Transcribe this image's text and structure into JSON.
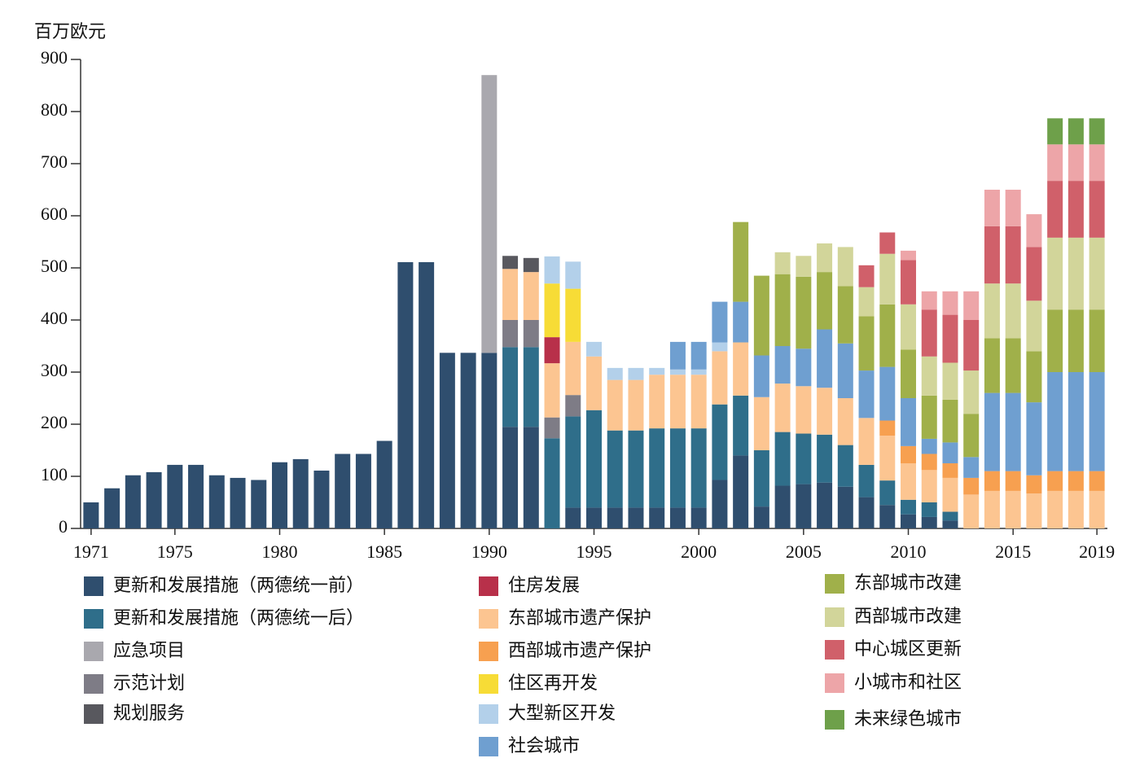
{
  "chart_data": {
    "type": "stacked_bar",
    "y_label": "百万欧元",
    "categories": [
      1971,
      null,
      null,
      null,
      1975,
      null,
      null,
      null,
      null,
      1980,
      null,
      null,
      null,
      null,
      1985,
      null,
      null,
      null,
      null,
      1990,
      null,
      null,
      null,
      null,
      1995,
      null,
      null,
      null,
      null,
      2000,
      null,
      null,
      null,
      null,
      2005,
      null,
      null,
      null,
      null,
      2010,
      null,
      null,
      null,
      null,
      2015,
      null,
      null,
      null,
      2019
    ],
    "ylim": [
      0,
      900
    ],
    "yticks": [
      0,
      100,
      200,
      300,
      400,
      500,
      600,
      700,
      800,
      900
    ],
    "series": [
      {
        "name": "更新和发展措施（两德统一前）",
        "color": "#2f4e6e",
        "values": [
          50,
          77,
          102,
          108,
          122,
          122,
          102,
          97,
          93,
          127,
          133,
          111,
          143,
          143,
          168,
          511,
          511,
          337,
          337,
          337,
          195,
          195,
          null,
          40,
          40,
          40,
          40,
          40,
          40,
          40,
          93,
          140,
          42,
          82,
          85,
          88,
          80,
          60,
          45,
          27,
          22,
          15,
          null,
          null,
          null,
          null,
          null,
          null,
          null
        ]
      },
      {
        "name": "更新和发展措施（两德统一后）",
        "color": "#2f6e8a",
        "values": [
          null,
          null,
          null,
          null,
          null,
          null,
          null,
          null,
          null,
          null,
          null,
          null,
          null,
          null,
          null,
          null,
          null,
          null,
          null,
          null,
          153,
          153,
          173,
          175,
          187,
          148,
          148,
          152,
          152,
          152,
          145,
          115,
          108,
          103,
          97,
          92,
          80,
          62,
          47,
          28,
          28,
          17,
          null,
          null,
          null,
          null,
          null,
          null,
          null
        ]
      },
      {
        "name": "应急项目",
        "color": "#a9a8ae",
        "values": [
          null,
          null,
          null,
          null,
          null,
          null,
          null,
          null,
          null,
          null,
          null,
          null,
          null,
          null,
          null,
          null,
          null,
          null,
          null,
          533,
          null,
          null,
          null,
          null,
          null,
          null,
          null,
          null,
          null,
          null,
          null,
          null,
          null,
          null,
          null,
          null,
          null,
          null,
          null,
          null,
          null,
          null,
          null,
          null,
          null,
          null,
          null,
          null,
          null
        ]
      },
      {
        "name": "示范计划",
        "color": "#7e7c86",
        "values": [
          null,
          null,
          null,
          null,
          null,
          null,
          null,
          null,
          null,
          null,
          null,
          null,
          null,
          null,
          null,
          null,
          null,
          null,
          null,
          null,
          52,
          52,
          40,
          41,
          null,
          null,
          null,
          null,
          null,
          null,
          null,
          null,
          null,
          null,
          null,
          null,
          null,
          null,
          null,
          null,
          null,
          null,
          null,
          null,
          null,
          null,
          null,
          null,
          null
        ]
      },
      {
        "name": "规划服务",
        "color": "#58585e",
        "values": [
          null,
          null,
          null,
          null,
          null,
          null,
          null,
          null,
          null,
          null,
          null,
          null,
          null,
          null,
          null,
          null,
          null,
          null,
          null,
          null,
          25,
          27,
          null,
          null,
          null,
          null,
          null,
          null,
          null,
          null,
          null,
          null,
          null,
          null,
          null,
          null,
          null,
          null,
          null,
          null,
          null,
          null,
          null,
          null,
          null,
          null,
          null,
          null,
          null
        ]
      },
      {
        "name": "住房发展",
        "color": "#b8304a",
        "values": [
          null,
          null,
          null,
          null,
          null,
          null,
          null,
          null,
          null,
          null,
          null,
          null,
          null,
          null,
          null,
          null,
          null,
          null,
          null,
          null,
          null,
          null,
          50,
          null,
          null,
          null,
          null,
          null,
          null,
          null,
          null,
          null,
          null,
          null,
          null,
          null,
          null,
          null,
          null,
          null,
          null,
          null,
          null,
          null,
          null,
          null,
          null,
          null,
          null
        ]
      },
      {
        "name": "东部城市遗产保护",
        "color": "#fcc591",
        "values": [
          null,
          null,
          null,
          null,
          null,
          null,
          null,
          null,
          null,
          null,
          null,
          null,
          null,
          null,
          null,
          null,
          null,
          null,
          null,
          null,
          98,
          92,
          104,
          102,
          103,
          97,
          97,
          103,
          103,
          103,
          102,
          102,
          102,
          93,
          91,
          90,
          90,
          90,
          86,
          70,
          62,
          65,
          65,
          72,
          72,
          67,
          72,
          72,
          72
        ]
      },
      {
        "name": "西部城市遗产保护",
        "color": "#f7a050",
        "values": [
          null,
          null,
          null,
          null,
          null,
          null,
          null,
          null,
          null,
          null,
          null,
          null,
          null,
          null,
          null,
          null,
          null,
          null,
          null,
          null,
          null,
          null,
          null,
          null,
          null,
          null,
          null,
          null,
          null,
          null,
          null,
          null,
          null,
          null,
          null,
          null,
          null,
          null,
          29,
          33,
          31,
          28,
          32,
          38,
          38,
          35,
          38,
          38,
          38
        ]
      },
      {
        "name": "住区再开发",
        "color": "#f7dc36",
        "values": [
          null,
          null,
          null,
          null,
          null,
          null,
          null,
          null,
          null,
          null,
          null,
          null,
          null,
          null,
          null,
          null,
          null,
          null,
          null,
          null,
          null,
          null,
          103,
          102,
          null,
          null,
          null,
          null,
          null,
          null,
          null,
          null,
          null,
          null,
          null,
          null,
          null,
          null,
          null,
          null,
          null,
          null,
          null,
          null,
          null,
          null,
          null,
          null,
          null
        ]
      },
      {
        "name": "大型新区开发",
        "color": "#b3d0ea",
        "values": [
          null,
          null,
          null,
          null,
          null,
          null,
          null,
          null,
          null,
          null,
          null,
          null,
          null,
          null,
          null,
          null,
          null,
          null,
          null,
          null,
          null,
          null,
          52,
          52,
          28,
          23,
          23,
          13,
          10,
          10,
          17,
          null,
          null,
          null,
          null,
          null,
          null,
          null,
          null,
          null,
          null,
          null,
          null,
          null,
          null,
          null,
          null,
          null,
          null
        ]
      },
      {
        "name": "社会城市",
        "color": "#6f9fd0",
        "values": [
          null,
          null,
          null,
          null,
          null,
          null,
          null,
          null,
          null,
          null,
          null,
          null,
          null,
          null,
          null,
          null,
          null,
          null,
          null,
          null,
          null,
          null,
          null,
          null,
          null,
          null,
          null,
          null,
          53,
          53,
          78,
          78,
          80,
          72,
          72,
          112,
          105,
          91,
          103,
          92,
          29,
          40,
          40,
          150,
          150,
          140,
          190,
          190,
          190
        ]
      },
      {
        "name": "东部城市改建",
        "color": "#a0b04a",
        "values": [
          null,
          null,
          null,
          null,
          null,
          null,
          null,
          null,
          null,
          null,
          null,
          null,
          null,
          null,
          null,
          null,
          null,
          null,
          null,
          null,
          null,
          null,
          null,
          null,
          null,
          null,
          null,
          null,
          null,
          null,
          null,
          153,
          153,
          138,
          138,
          110,
          110,
          104,
          120,
          93,
          83,
          82,
          83,
          105,
          105,
          98,
          120,
          120,
          120
        ]
      },
      {
        "name": "西部城市改建",
        "color": "#d2d59a",
        "values": [
          null,
          null,
          null,
          null,
          null,
          null,
          null,
          null,
          null,
          null,
          null,
          null,
          null,
          null,
          null,
          null,
          null,
          null,
          null,
          null,
          null,
          null,
          null,
          null,
          null,
          null,
          null,
          null,
          null,
          null,
          null,
          null,
          null,
          42,
          40,
          55,
          75,
          56,
          97,
          87,
          75,
          71,
          83,
          105,
          105,
          97,
          138,
          138,
          138
        ]
      },
      {
        "name": "中心城区更新",
        "color": "#d0606a",
        "values": [
          null,
          null,
          null,
          null,
          null,
          null,
          null,
          null,
          null,
          null,
          null,
          null,
          null,
          null,
          null,
          null,
          null,
          null,
          null,
          null,
          null,
          null,
          null,
          null,
          null,
          null,
          null,
          null,
          null,
          null,
          null,
          null,
          null,
          null,
          null,
          null,
          null,
          42,
          41,
          85,
          90,
          92,
          97,
          110,
          110,
          103,
          109,
          109,
          109
        ]
      },
      {
        "name": "小城市和社区",
        "color": "#eda5a8",
        "values": [
          null,
          null,
          null,
          null,
          null,
          null,
          null,
          null,
          null,
          null,
          null,
          null,
          null,
          null,
          null,
          null,
          null,
          null,
          null,
          null,
          null,
          null,
          null,
          null,
          null,
          null,
          null,
          null,
          null,
          null,
          null,
          null,
          null,
          null,
          null,
          null,
          null,
          null,
          null,
          18,
          35,
          45,
          55,
          70,
          70,
          63,
          70,
          70,
          70
        ]
      },
      {
        "name": "未来绿色城市",
        "color": "#6ea04a",
        "values": [
          null,
          null,
          null,
          null,
          null,
          null,
          null,
          null,
          null,
          null,
          null,
          null,
          null,
          null,
          null,
          null,
          null,
          null,
          null,
          null,
          null,
          null,
          null,
          null,
          null,
          null,
          null,
          null,
          null,
          null,
          null,
          null,
          null,
          null,
          null,
          null,
          null,
          null,
          null,
          null,
          null,
          null,
          null,
          null,
          null,
          null,
          50,
          50,
          50
        ]
      }
    ]
  }
}
